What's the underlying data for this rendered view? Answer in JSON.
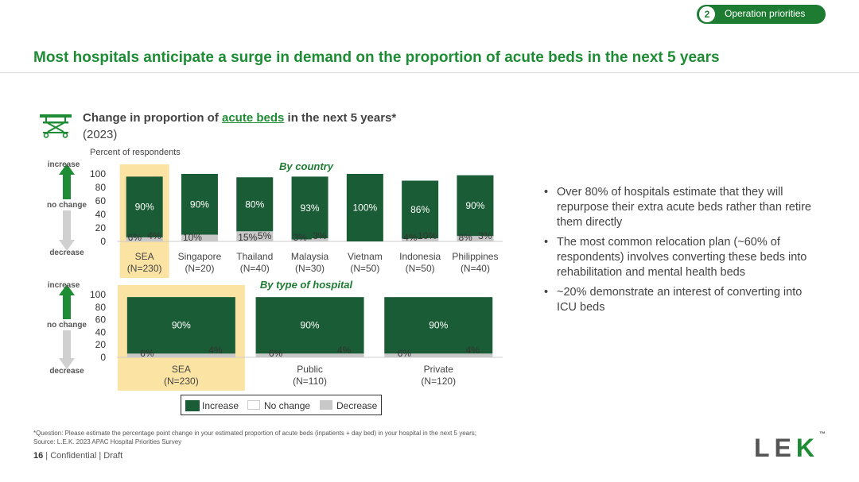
{
  "header": {
    "section_number": "2",
    "section_label": "Operation priorities",
    "title": "Most hospitals anticipate a surge in demand on the proportion of acute beds in the next 5 years"
  },
  "chart_header": {
    "title_pre": "Change in proportion of ",
    "title_highlight": "acute beds",
    "title_post": " in the next 5 years*",
    "year": "(2023)",
    "y_unit": "Percent of respondents",
    "side_increase": "increase",
    "side_no_change": "no change",
    "side_decrease": "decrease"
  },
  "colors": {
    "increase": "#1a5c35",
    "decrease": "#c8c8c8",
    "highlight": "#fbe3a3",
    "accent": "#1e8c34"
  },
  "chart_data": [
    {
      "type": "bar",
      "stacked": true,
      "subtitle": "By country",
      "categories": [
        "SEA",
        "Singapore",
        "Thailand",
        "Malaysia",
        "Vietnam",
        "Indonesia",
        "Philippines"
      ],
      "category_n": [
        "(N=230)",
        "(N=20)",
        "(N=40)",
        "(N=30)",
        "(N=50)",
        "(N=50)",
        "(N=40)"
      ],
      "highlighted_category": "SEA",
      "series": [
        {
          "name": "Increase",
          "values": [
            90,
            90,
            80,
            93,
            100,
            86,
            90
          ]
        },
        {
          "name": "No change",
          "values": [
            4,
            0,
            5,
            3,
            0,
            10,
            3
          ]
        },
        {
          "name": "Decrease",
          "values": [
            6,
            10,
            15,
            3,
            0,
            4,
            8
          ]
        }
      ],
      "labels": {
        "increase": [
          "90%",
          "90%",
          "80%",
          "93%",
          "100%",
          "86%",
          "90%"
        ],
        "decrease": [
          "6%",
          "10%",
          "15%",
          "3%",
          "",
          "4%",
          "8%"
        ],
        "no_change": [
          "4%",
          "",
          "5%",
          "3%",
          "",
          "10%",
          "3%"
        ]
      },
      "yticks": [
        "100",
        "80",
        "60",
        "40",
        "20",
        "0"
      ],
      "ylim": [
        0,
        100
      ]
    },
    {
      "type": "bar",
      "stacked": true,
      "subtitle": "By type of hospital",
      "categories": [
        "SEA",
        "Public",
        "Private"
      ],
      "category_n": [
        "(N=230)",
        "(N=110)",
        "(N=120)"
      ],
      "highlighted_category": "SEA",
      "series": [
        {
          "name": "Increase",
          "values": [
            90,
            90,
            90
          ]
        },
        {
          "name": "No change",
          "values": [
            4,
            4,
            4
          ]
        },
        {
          "name": "Decrease",
          "values": [
            6,
            6,
            6
          ]
        }
      ],
      "labels": {
        "increase": [
          "90%",
          "90%",
          "90%"
        ],
        "decrease": [
          "6%",
          "6%",
          "6%"
        ],
        "no_change": [
          "4%",
          "4%",
          "4%"
        ]
      },
      "yticks": [
        "100",
        "80",
        "60",
        "40",
        "20",
        "0"
      ],
      "ylim": [
        0,
        100
      ]
    }
  ],
  "legend": {
    "increase": "Increase",
    "no_change": "No change",
    "decrease": "Decrease"
  },
  "bullets": [
    "Over 80% of hospitals estimate that they will repurpose their extra acute beds rather than retire them directly",
    "The most common relocation plan (~60% of respondents) involves converting these beds into rehabilitation and mental health beds",
    "~20% demonstrate an interest of converting into ICU beds"
  ],
  "footnote": {
    "question": "*Question: Please estimate the percentage point change in your estimated proportion of acute beds (inpatients + day bed) in your hospital in the next 5 years;",
    "source": "Source: L.E.K. 2023 APAC Hospital Priorities Survey"
  },
  "footer": {
    "page": "16",
    "text": " | Confidential | Draft"
  },
  "logo": {
    "l": "L",
    "e": "E",
    "k": "K",
    "tm": "™"
  }
}
